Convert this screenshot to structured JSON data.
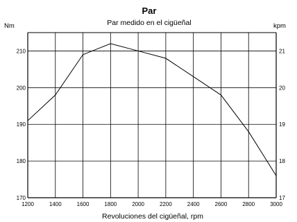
{
  "chart_data": {
    "type": "line",
    "title": "Par",
    "subtitle": "Par medido en el cigüeñal",
    "xlabel": "Revoluciones del cigüeñal, rpm",
    "ylabel_left": "Nm",
    "ylabel_right": "kpm",
    "xlim": [
      1200,
      3000
    ],
    "ylim": [
      170,
      215
    ],
    "x_ticks": [
      "1200",
      "1400",
      "1600",
      "1800",
      "2000",
      "2200",
      "2400",
      "2600",
      "2800",
      "3000"
    ],
    "y_ticks_left": [
      "170",
      "180",
      "190",
      "200",
      "210"
    ],
    "y_ticks_right": [
      "17",
      "18",
      "19",
      "20",
      "21"
    ],
    "grid": true,
    "series": [
      {
        "x": [
          1200,
          1400,
          1600,
          1800,
          2000,
          2200,
          2400,
          2600,
          2800,
          3000
        ],
        "y": [
          191,
          198,
          209,
          212,
          210,
          208,
          203,
          198,
          188,
          176
        ]
      }
    ]
  }
}
